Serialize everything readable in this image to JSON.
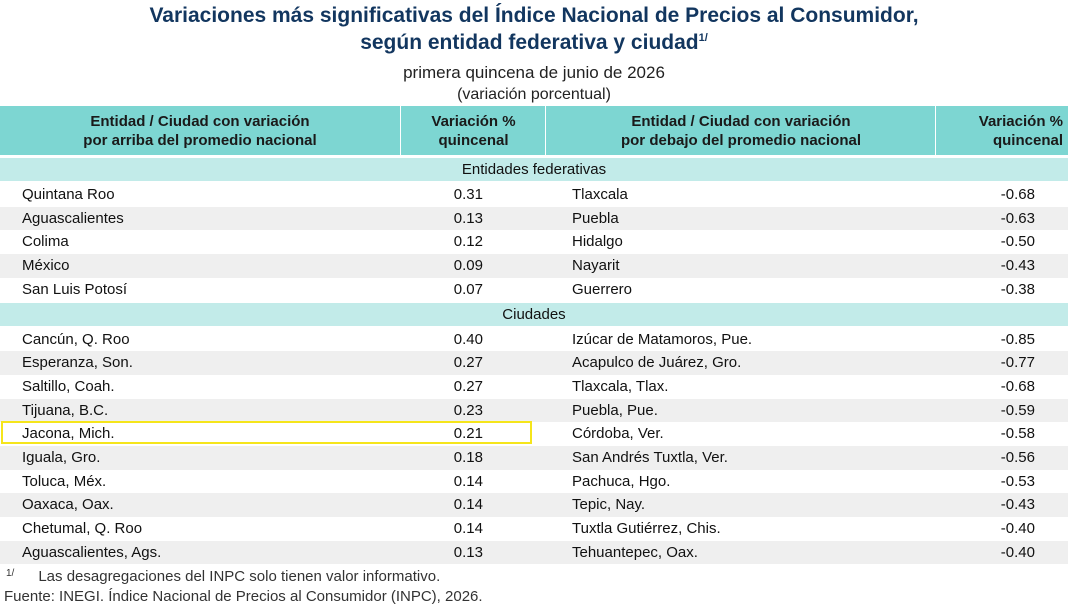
{
  "header": {
    "title_line1": "Variaciones más significativas del Índice Nacional de Precios al Consumidor,",
    "title_line2": "según entidad federativa y ciudad",
    "title_note": "1/",
    "subtitle": "primera quincena de junio de 2026",
    "unit": "(variación porcentual)"
  },
  "table": {
    "columns": [
      [
        "Entidad / Ciudad con variación",
        "por arriba del promedio nacional"
      ],
      [
        "Variación %",
        "quincenal"
      ],
      [
        "Entidad / Ciudad con variación",
        "por debajo del promedio nacional"
      ],
      [
        "Variación %",
        "quincenal"
      ]
    ],
    "sections": [
      {
        "title": "Entidades federativas",
        "rows": [
          [
            "Quintana Roo",
            "0.31",
            "Tlaxcala",
            "-0.68"
          ],
          [
            "Aguascalientes",
            "0.13",
            "Puebla",
            "-0.63"
          ],
          [
            "Colima",
            "0.12",
            "Hidalgo",
            "-0.50"
          ],
          [
            "México",
            "0.09",
            "Nayarit",
            "-0.43"
          ],
          [
            "San Luis Potosí",
            "0.07",
            "Guerrero",
            "-0.38"
          ]
        ]
      },
      {
        "title": "Ciudades",
        "rows": [
          [
            "Cancún, Q. Roo",
            "0.40",
            "Izúcar de Matamoros, Pue.",
            "-0.85"
          ],
          [
            "Esperanza, Son.",
            "0.27",
            "Acapulco de Juárez, Gro.",
            "-0.77"
          ],
          [
            "Saltillo, Coah.",
            "0.27",
            "Tlaxcala, Tlax.",
            "-0.68"
          ],
          [
            "Tijuana, B.C.",
            "0.23",
            "Puebla, Pue.",
            "-0.59"
          ],
          [
            "Jacona, Mich.",
            "0.21",
            "Córdoba, Ver.",
            "-0.58"
          ],
          [
            "Iguala, Gro.",
            "0.18",
            "San Andrés Tuxtla, Ver.",
            "-0.56"
          ],
          [
            "Toluca, Méx.",
            "0.14",
            "Pachuca, Hgo.",
            "-0.53"
          ],
          [
            "Oaxaca, Oax.",
            "0.14",
            "Tepic, Nay.",
            "-0.43"
          ],
          [
            "Chetumal, Q. Roo",
            "0.14",
            "Tuxtla Gutiérrez, Chis.",
            "-0.40"
          ],
          [
            "Aguascalientes, Ags.",
            "0.13",
            "Tehuantepec, Oax.",
            "-0.40"
          ]
        ]
      }
    ]
  },
  "footnotes": {
    "marker": "1/",
    "note": "Las desagregaciones del INPC solo tienen valor informativo.",
    "source": "Fuente: INEGI. Índice Nacional de Precios al Consumidor (INPC), 2026."
  }
}
